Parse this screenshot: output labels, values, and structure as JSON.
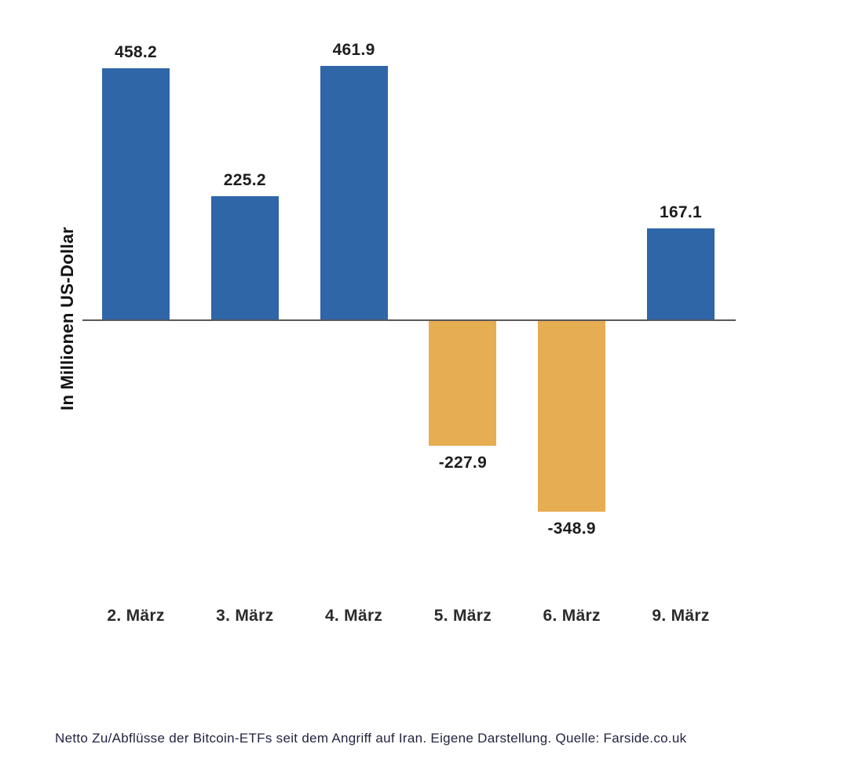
{
  "chart_data": {
    "type": "bar",
    "categories": [
      "2. März",
      "3. März",
      "4. März",
      "5. März",
      "6. März",
      "9. März"
    ],
    "values": [
      458.2,
      225.2,
      461.9,
      -227.9,
      -348.9,
      167.1
    ],
    "value_labels": [
      "458.2",
      "225.2",
      "461.9",
      "-227.9",
      "-348.9",
      "167.1"
    ],
    "title": "",
    "xlabel": "",
    "ylabel": "In Millionen US-Dollar",
    "ylim": [
      -400,
      500
    ],
    "grid": false,
    "legend": "none",
    "positive_color": "#2e66a8",
    "negative_color": "#e7ad53",
    "axis_line_color": "#58585a"
  },
  "caption": "Netto Zu/Abflüsse der Bitcoin-ETFs seit dem Angriff auf Iran. Eigene Darstellung. Quelle: Farside.co.uk"
}
